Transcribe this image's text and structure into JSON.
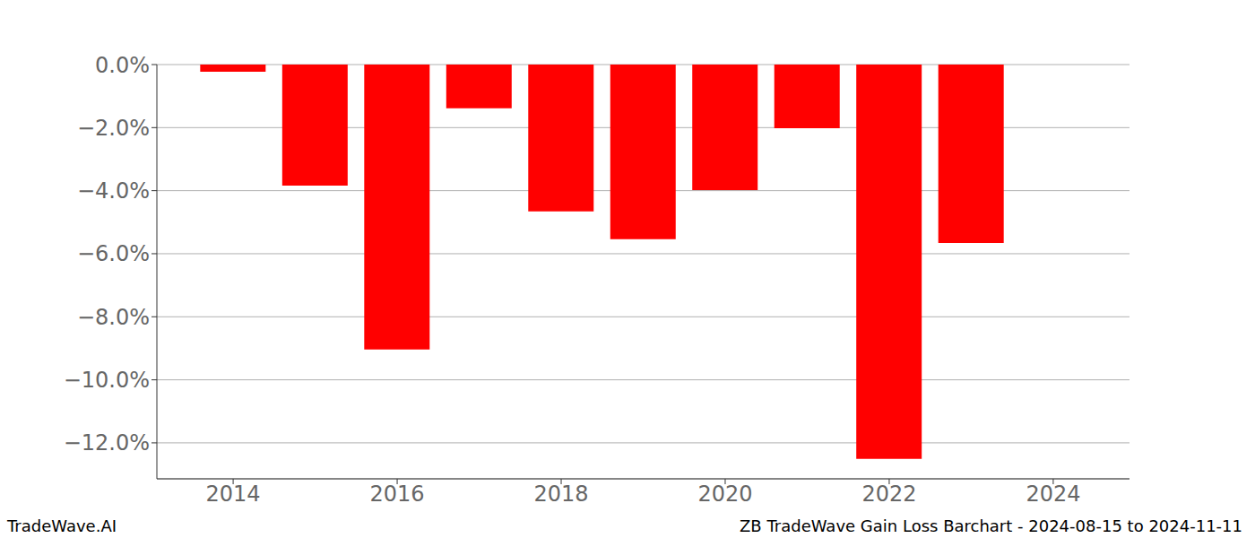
{
  "chart_data": {
    "type": "bar",
    "title": "ZB TradeWave Gain Loss Barchart - 2024-08-15 to 2024-11-11",
    "source": "TradeWave.AI",
    "x": [
      2014,
      2015,
      2016,
      2017,
      2018,
      2019,
      2020,
      2021,
      2022,
      2023
    ],
    "values": [
      -0.23,
      -3.84,
      -9.04,
      -1.39,
      -4.66,
      -5.54,
      -3.98,
      -2.02,
      -12.51,
      -5.66
    ],
    "color": "#ff0000",
    "xlim": [
      2013.07,
      2024.93
    ],
    "xticks": [
      2014,
      2016,
      2018,
      2020,
      2022,
      2024
    ],
    "ylim": [
      -13.14,
      0
    ],
    "yticks": [
      {
        "value": 0,
        "label": "0.0%"
      },
      {
        "value": -2,
        "label": "−2.0%"
      },
      {
        "value": -4,
        "label": "−4.0%"
      },
      {
        "value": -6,
        "label": "−6.0%"
      },
      {
        "value": -8,
        "label": "−8.0%"
      },
      {
        "value": -10,
        "label": "−10.0%"
      },
      {
        "value": -12,
        "label": "−12.0%"
      }
    ],
    "grid": true
  }
}
